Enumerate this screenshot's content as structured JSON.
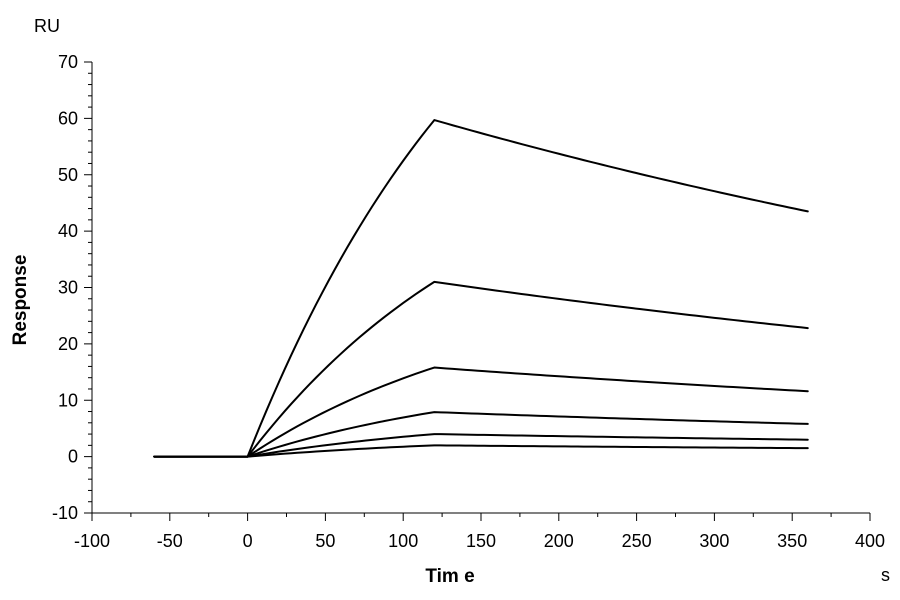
{
  "chart_data": {
    "type": "line",
    "title": "",
    "xlabel": "Tim e",
    "ylabel": "Response",
    "x_unit": "s",
    "y_unit": "RU",
    "xlim": [
      -100,
      400
    ],
    "ylim": [
      -10,
      70
    ],
    "x_ticks": [
      -100,
      -50,
      0,
      50,
      100,
      150,
      200,
      250,
      300,
      350,
      400
    ],
    "y_ticks": [
      -10,
      0,
      10,
      20,
      30,
      40,
      50,
      60,
      70
    ],
    "grid": false,
    "legend": "none",
    "line_color": "#000000",
    "series": [
      {
        "x": [
          -60,
          0,
          120,
          360
        ],
        "values": [
          0,
          0,
          59.7,
          43.5
        ]
      },
      {
        "x": [
          -60,
          0,
          120,
          360
        ],
        "values": [
          0,
          0,
          31.0,
          22.8
        ]
      },
      {
        "x": [
          -60,
          0,
          120,
          360
        ],
        "values": [
          0,
          0,
          15.8,
          11.6
        ]
      },
      {
        "x": [
          -60,
          0,
          120,
          360
        ],
        "values": [
          0,
          0,
          7.9,
          5.8
        ]
      },
      {
        "x": [
          -60,
          0,
          120,
          360
        ],
        "values": [
          0,
          0,
          4.0,
          3.0
        ]
      },
      {
        "x": [
          -60,
          0,
          120,
          360
        ],
        "values": [
          0,
          0,
          2.0,
          1.5
        ]
      }
    ]
  }
}
